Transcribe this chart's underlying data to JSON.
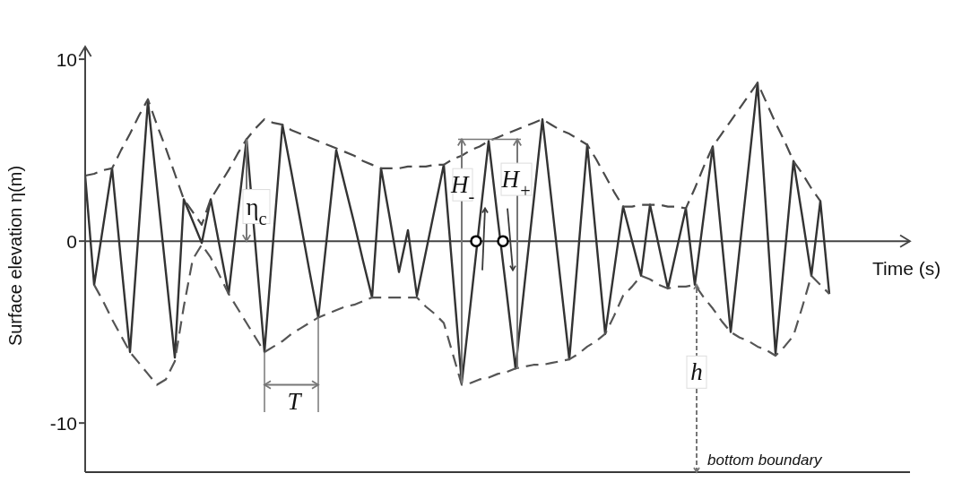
{
  "chart_data": {
    "type": "line",
    "xlabel": "Time (s)",
    "ylabel": "Surface elevation η(m)",
    "categories": [
      null,
      null,
      null,
      null,
      null,
      null,
      null,
      null,
      null,
      null,
      null,
      null,
      null,
      null,
      null,
      null,
      null,
      null,
      null,
      null,
      null,
      null,
      null,
      null,
      null,
      null,
      null,
      null,
      null,
      null,
      null,
      null,
      null,
      null,
      null,
      null,
      null,
      null,
      null,
      null,
      null,
      null,
      null,
      null,
      null,
      null,
      null,
      null,
      null,
      null,
      null,
      null,
      null,
      null,
      null,
      null,
      null,
      null,
      null,
      null,
      null,
      null,
      null,
      null,
      null,
      null,
      null,
      null,
      null,
      null,
      null,
      null,
      null,
      null,
      null,
      null,
      null,
      null,
      null,
      null,
      null,
      null,
      null,
      null
    ],
    "series": [
      {
        "color": "#333333",
        "line_style": "solid",
        "values": [
          3.6,
          -2.4,
          0.8,
          4.0,
          -1.1,
          -6.1,
          0.8,
          7.7,
          3.0,
          -1.7,
          -6.4,
          2.3,
          1.1,
          -0.1,
          2.3,
          -0.3,
          -2.9,
          1.4,
          5.6,
          -0.3,
          -6.1,
          0.2,
          6.4,
          3.8,
          1.1,
          -1.6,
          -4.2,
          0.4,
          5.0,
          3.0,
          1.0,
          -1.1,
          -3.1,
          4.0,
          1.2,
          -1.7,
          0.6,
          -3.0,
          -0.6,
          1.8,
          4.2,
          -1.8,
          -7.8,
          -3.4,
          1.1,
          5.5,
          1.3,
          -2.8,
          -7.0,
          -2.4,
          2.1,
          6.7,
          2.3,
          -2.1,
          -6.5,
          -0.6,
          5.3,
          0.1,
          -5.1,
          -1.6,
          1.9,
          0.0,
          -1.9,
          2.0,
          -0.3,
          -2.6,
          -0.4,
          1.8,
          -2.4,
          1.4,
          5.2,
          0.1,
          -5.0,
          -0.4,
          4.1,
          8.7,
          1.3,
          -6.2,
          -0.9,
          4.4,
          1.3,
          -1.9,
          2.2,
          -2.9
        ]
      },
      {
        "color": "#4a4a4a",
        "line_style": "dashed",
        "values": [
          3.6,
          3.7,
          3.9,
          4.0,
          5.0,
          5.9,
          6.9,
          7.8,
          6.4,
          5.1,
          3.7,
          2.3,
          1.6,
          0.9,
          2.3,
          3.1,
          3.9,
          4.8,
          5.6,
          6.2,
          6.7,
          6.5,
          6.4,
          6.1,
          5.9,
          5.7,
          5.5,
          5.3,
          5.1,
          4.9,
          4.7,
          4.4,
          4.2,
          4.0,
          4.0,
          4.0,
          4.1,
          4.1,
          4.1,
          4.2,
          4.2,
          4.5,
          4.7,
          5.0,
          5.2,
          5.5,
          5.7,
          5.9,
          6.1,
          6.3,
          6.5,
          6.7,
          6.4,
          6.1,
          5.9,
          5.6,
          5.3,
          4.5,
          3.6,
          2.7,
          1.9,
          1.9,
          2.0,
          2.0,
          2.0,
          1.9,
          1.9,
          1.8,
          2.9,
          4.1,
          5.2,
          5.9,
          6.6,
          7.3,
          8.0,
          8.7,
          7.6,
          6.5,
          5.5,
          4.4,
          3.7,
          2.9,
          2.2,
          null
        ]
      },
      {
        "color": "#555555",
        "line_style": "dashed",
        "values": [
          null,
          -2.4,
          -3.3,
          -4.3,
          -5.2,
          -6.1,
          -6.7,
          -7.3,
          -7.9,
          -7.6,
          -6.6,
          -3.6,
          -1.0,
          -0.2,
          -0.9,
          -1.9,
          -2.9,
          -3.7,
          -4.5,
          -5.3,
          -6.1,
          -5.8,
          -5.5,
          -5.1,
          -4.8,
          -4.5,
          -4.2,
          -4.0,
          -3.8,
          -3.6,
          -3.5,
          -3.3,
          -3.1,
          -3.1,
          -3.1,
          -3.1,
          -3.1,
          -3.1,
          -3.6,
          -4.0,
          -4.5,
          -6.2,
          -7.9,
          -7.8,
          -7.6,
          -7.5,
          -7.3,
          -7.2,
          -7.0,
          -6.9,
          -6.8,
          -6.8,
          -6.7,
          -6.6,
          -6.5,
          -6.2,
          -5.8,
          -5.5,
          -5.1,
          -4.1,
          -3.0,
          -2.5,
          -1.9,
          -2.1,
          -2.4,
          -2.6,
          -2.5,
          -2.5,
          -2.4,
          -3.1,
          -3.7,
          -4.4,
          -5.0,
          -5.3,
          -5.5,
          -5.8,
          -6.0,
          -6.3,
          -5.8,
          -5.2,
          -3.6,
          -1.9,
          -2.4,
          -2.9
        ]
      }
    ],
    "ylim": [
      -12.7,
      10.3
    ],
    "yticks": [
      10,
      0,
      -10
    ],
    "tick_labels": "y",
    "grid": false,
    "legend": false,
    "marker": "none",
    "ref_lines": [
      {
        "axis": "y",
        "value": 0,
        "color": "#444444"
      },
      {
        "axis": "y",
        "value": -12.7,
        "label": "bottom boundary",
        "color": "#3a3a3a"
      }
    ],
    "annotations": [
      "η$_{c}$",
      "T",
      "H$_{-}$",
      "H$_{+}$",
      "h"
    ]
  }
}
